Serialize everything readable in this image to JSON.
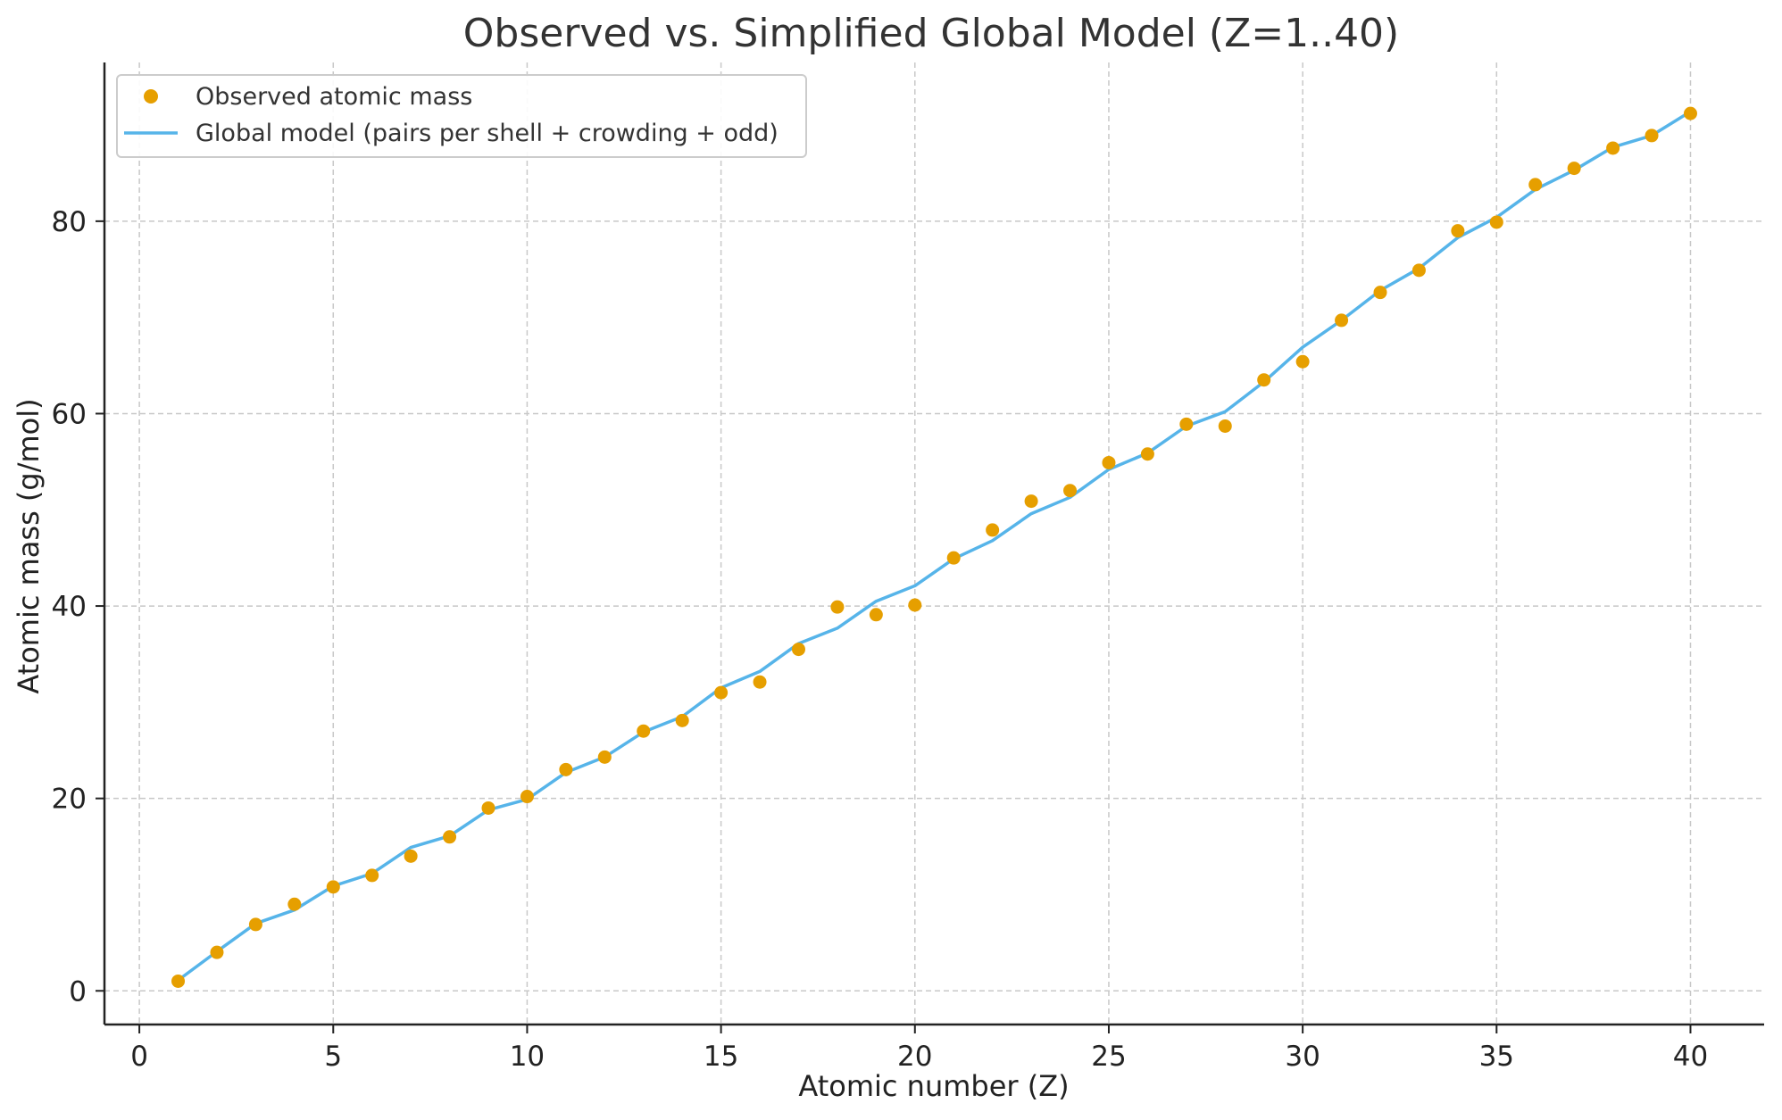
{
  "chart_data": {
    "type": "scatter",
    "title": "Observed vs. Simplified Global Model (Z=1..40)",
    "xlabel": "Atomic number (Z)",
    "ylabel": "Atomic mass (g/mol)",
    "xlim": [
      -0.9,
      41.9
    ],
    "ylim": [
      -3.5,
      96.5
    ],
    "xticks": [
      0,
      5,
      10,
      15,
      20,
      25,
      30,
      35,
      40
    ],
    "yticks": [
      0,
      20,
      40,
      60,
      80
    ],
    "grid": true,
    "legend_position": "top-left",
    "colors": {
      "observed": "#E69F00",
      "model": "#56B4E9"
    },
    "series": [
      {
        "name": "Observed atomic mass",
        "kind": "scatter",
        "x": [
          1,
          2,
          3,
          4,
          5,
          6,
          7,
          8,
          9,
          10,
          11,
          12,
          13,
          14,
          15,
          16,
          17,
          18,
          19,
          20,
          21,
          22,
          23,
          24,
          25,
          26,
          27,
          28,
          29,
          30,
          31,
          32,
          33,
          34,
          35,
          36,
          37,
          38,
          39,
          40
        ],
        "y": [
          1.0,
          4.0,
          6.9,
          9.0,
          10.8,
          12.0,
          14.0,
          16.0,
          19.0,
          20.2,
          23.0,
          24.3,
          27.0,
          28.1,
          31.0,
          32.1,
          35.5,
          39.9,
          39.1,
          40.1,
          45.0,
          47.9,
          50.9,
          52.0,
          54.9,
          55.8,
          58.9,
          58.7,
          63.5,
          65.4,
          69.7,
          72.6,
          74.9,
          79.0,
          79.9,
          83.8,
          85.5,
          87.6,
          88.9,
          91.2
        ]
      },
      {
        "name": "Global model (pairs per shell + crowding + odd)",
        "kind": "line",
        "x": [
          1,
          2,
          3,
          4,
          5,
          6,
          7,
          8,
          9,
          10,
          11,
          12,
          13,
          14,
          15,
          16,
          17,
          18,
          19,
          20,
          21,
          22,
          23,
          24,
          25,
          26,
          27,
          28,
          29,
          30,
          31,
          32,
          33,
          34,
          35,
          36,
          37,
          38,
          39,
          40
        ],
        "y": [
          1.1,
          4.1,
          7.0,
          8.4,
          10.9,
          12.2,
          14.9,
          16.1,
          18.8,
          19.9,
          22.7,
          24.3,
          26.9,
          28.5,
          31.5,
          33.2,
          36.1,
          37.7,
          40.5,
          42.1,
          44.9,
          46.8,
          49.6,
          51.3,
          54.2,
          55.9,
          58.7,
          60.2,
          63.3,
          66.9,
          69.7,
          72.8,
          75.1,
          78.3,
          80.4,
          83.3,
          85.3,
          87.7,
          88.9,
          91.4
        ]
      }
    ]
  }
}
